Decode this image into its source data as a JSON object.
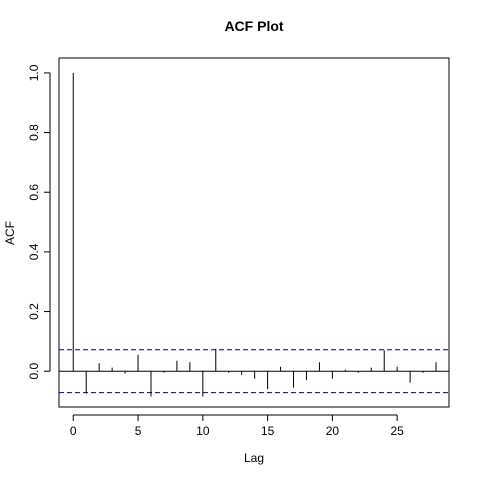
{
  "chart_data": {
    "type": "bar",
    "title": "ACF Plot",
    "xlabel": "Lag",
    "ylabel": "ACF",
    "xlim": [
      -1.1,
      29.0
    ],
    "ylim": [
      -0.12,
      1.05
    ],
    "x_ticks": [
      0,
      5,
      10,
      15,
      20,
      25
    ],
    "y_ticks": [
      0.0,
      0.2,
      0.4,
      0.6,
      0.8,
      1.0
    ],
    "x_tick_labels": [
      "0",
      "5",
      "10",
      "15",
      "20",
      "25"
    ],
    "y_tick_labels": [
      "0.0",
      "0.2",
      "0.4",
      "0.6",
      "0.8",
      "1.0"
    ],
    "confidence_bound": 0.072,
    "grid": false,
    "lags": [
      0,
      1,
      2,
      3,
      4,
      5,
      6,
      7,
      8,
      9,
      10,
      11,
      12,
      13,
      14,
      15,
      16,
      17,
      18,
      19,
      20,
      21,
      22,
      23,
      24,
      25,
      26,
      27,
      28
    ],
    "values": [
      1.0,
      -0.075,
      0.027,
      0.012,
      -0.008,
      0.055,
      -0.085,
      -0.005,
      0.035,
      0.03,
      -0.085,
      0.075,
      -0.005,
      -0.013,
      -0.025,
      -0.06,
      0.015,
      -0.055,
      -0.03,
      0.03,
      -0.025,
      0.005,
      -0.005,
      0.012,
      0.07,
      0.015,
      -0.038,
      -0.005,
      0.03
    ],
    "colors": {
      "bars": "#000000",
      "bound": "#00008b",
      "zero_line": "#000000",
      "frame": "#000000"
    }
  }
}
